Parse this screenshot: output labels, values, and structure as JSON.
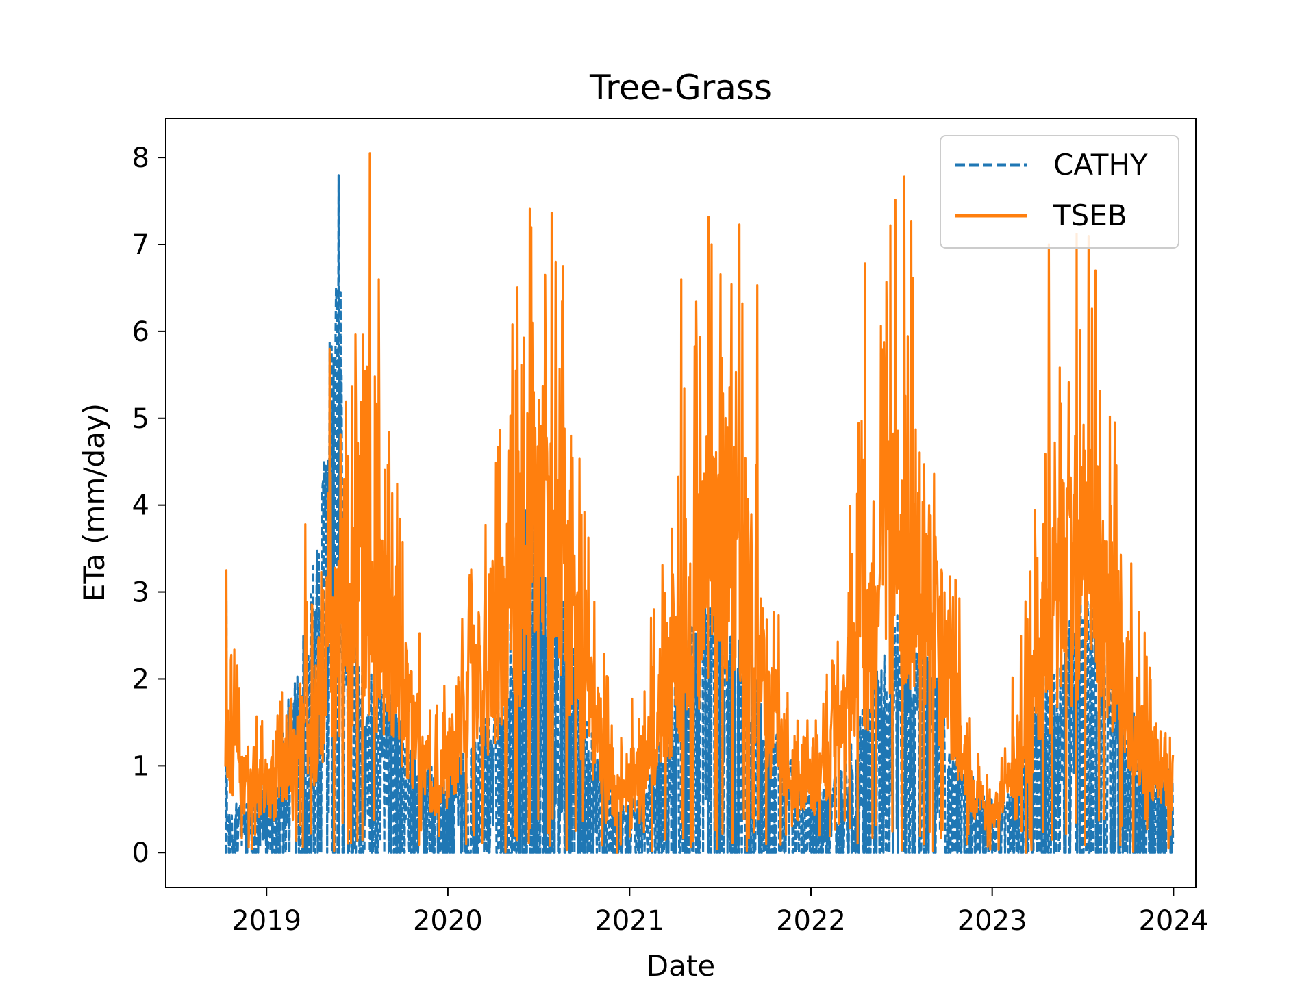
{
  "chart_data": {
    "type": "line",
    "title": "Tree-Grass",
    "xlabel": "Date",
    "ylabel": "ETa (mm/day)",
    "xlim": [
      "2018-06-12",
      "2024-02-15"
    ],
    "ylim": [
      -0.4,
      8.45
    ],
    "x_ticks": [
      "2019",
      "2020",
      "2021",
      "2022",
      "2023",
      "2024"
    ],
    "y_ticks": [
      0,
      1,
      2,
      3,
      4,
      5,
      6,
      7,
      8
    ],
    "grid": false,
    "legend": {
      "placement": "top-right"
    },
    "date_range": [
      "2018-10-10",
      "2023-12-31"
    ],
    "series": [
      {
        "name": "CATHY",
        "style": "dashed",
        "color": "#1f77b4",
        "anchors": [
          [
            "2018-10-10",
            0.3
          ],
          [
            "2018-11-15",
            0.5
          ],
          [
            "2018-12-20",
            0.6
          ],
          [
            "2019-02-01",
            1.0
          ],
          [
            "2019-03-15",
            2.0
          ],
          [
            "2019-04-20",
            2.8
          ],
          [
            "2019-05-10",
            5.0
          ],
          [
            "2019-05-25",
            6.3
          ],
          [
            "2019-06-10",
            2.5
          ],
          [
            "2019-07-15",
            1.6
          ],
          [
            "2019-09-01",
            1.4
          ],
          [
            "2019-10-15",
            1.0
          ],
          [
            "2019-12-15",
            0.7
          ],
          [
            "2020-02-15",
            0.9
          ],
          [
            "2020-04-01",
            1.3
          ],
          [
            "2020-05-15",
            2.2
          ],
          [
            "2020-06-15",
            3.6
          ],
          [
            "2020-07-15",
            2.7
          ],
          [
            "2020-09-01",
            2.0
          ],
          [
            "2020-10-15",
            1.1
          ],
          [
            "2020-12-15",
            0.4
          ],
          [
            "2021-02-15",
            0.7
          ],
          [
            "2021-04-15",
            1.8
          ],
          [
            "2021-06-15",
            2.6
          ],
          [
            "2021-08-01",
            2.3
          ],
          [
            "2021-09-15",
            1.6
          ],
          [
            "2021-11-15",
            0.9
          ],
          [
            "2022-01-15",
            0.5
          ],
          [
            "2022-03-15",
            0.9
          ],
          [
            "2022-05-15",
            1.6
          ],
          [
            "2022-07-01",
            2.1
          ],
          [
            "2022-09-01",
            1.7
          ],
          [
            "2022-10-15",
            1.0
          ],
          [
            "2022-12-15",
            0.5
          ],
          [
            "2023-02-15",
            0.6
          ],
          [
            "2023-04-01",
            1.4
          ],
          [
            "2023-05-15",
            1.8
          ],
          [
            "2023-07-01",
            2.4
          ],
          [
            "2023-08-15",
            2.0
          ],
          [
            "2023-10-01",
            1.4
          ],
          [
            "2023-11-15",
            0.9
          ],
          [
            "2023-12-31",
            0.7
          ]
        ],
        "peaks": [
          [
            "2018-10-12",
            2.9
          ],
          [
            "2019-04-05",
            3.3
          ],
          [
            "2019-05-22",
            6.3
          ],
          [
            "2019-05-30",
            6.45
          ],
          [
            "2020-06-28",
            4.4
          ],
          [
            "2021-07-15",
            3.0
          ],
          [
            "2022-06-10",
            2.6
          ],
          [
            "2023-06-20",
            2.6
          ],
          [
            "2023-09-01",
            2.3
          ]
        ]
      },
      {
        "name": "TSEB",
        "style": "solid",
        "color": "#ff7f0e",
        "anchors": [
          [
            "2018-10-10",
            1.5
          ],
          [
            "2018-11-20",
            0.9
          ],
          [
            "2019-01-15",
            0.8
          ],
          [
            "2019-03-01",
            1.3
          ],
          [
            "2019-04-15",
            1.8
          ],
          [
            "2019-06-01",
            2.8
          ],
          [
            "2019-07-15",
            3.4
          ],
          [
            "2019-09-01",
            2.8
          ],
          [
            "2019-10-15",
            1.7
          ],
          [
            "2019-12-01",
            0.9
          ],
          [
            "2020-01-15",
            1.2
          ],
          [
            "2020-03-01",
            2.2
          ],
          [
            "2020-04-15",
            2.8
          ],
          [
            "2020-06-01",
            3.9
          ],
          [
            "2020-07-15",
            4.3
          ],
          [
            "2020-09-01",
            3.1
          ],
          [
            "2020-10-15",
            1.8
          ],
          [
            "2020-12-01",
            0.8
          ],
          [
            "2021-01-15",
            1.0
          ],
          [
            "2021-03-01",
            1.8
          ],
          [
            "2021-04-15",
            2.9
          ],
          [
            "2021-06-01",
            3.8
          ],
          [
            "2021-07-15",
            4.3
          ],
          [
            "2021-09-01",
            3.1
          ],
          [
            "2021-10-15",
            1.8
          ],
          [
            "2021-12-01",
            0.8
          ],
          [
            "2022-01-15",
            0.9
          ],
          [
            "2022-03-01",
            1.7
          ],
          [
            "2022-04-15",
            2.8
          ],
          [
            "2022-06-01",
            3.9
          ],
          [
            "2022-07-15",
            4.2
          ],
          [
            "2022-09-01",
            3.1
          ],
          [
            "2022-10-15",
            1.9
          ],
          [
            "2022-12-01",
            0.6
          ],
          [
            "2023-01-15",
            0.6
          ],
          [
            "2023-03-01",
            1.4
          ],
          [
            "2023-04-15",
            2.6
          ],
          [
            "2023-06-01",
            3.6
          ],
          [
            "2023-07-15",
            3.9
          ],
          [
            "2023-09-01",
            2.8
          ],
          [
            "2023-10-15",
            1.6
          ],
          [
            "2023-12-01",
            1.1
          ],
          [
            "2023-12-31",
            1.05
          ]
        ],
        "peaks": [
          [
            "2018-10-12",
            3.25
          ],
          [
            "2019-03-20",
            3.78
          ],
          [
            "2019-05-08",
            5.8
          ],
          [
            "2019-07-28",
            8.05
          ],
          [
            "2019-08-15",
            6.6
          ],
          [
            "2020-05-10",
            6.08
          ],
          [
            "2020-07-15",
            6.65
          ],
          [
            "2020-08-05",
            6.8
          ],
          [
            "2020-08-20",
            6.75
          ],
          [
            "2021-04-15",
            6.6
          ],
          [
            "2021-06-15",
            7.0
          ],
          [
            "2021-08-10",
            7.23
          ],
          [
            "2021-09-15",
            6.53
          ],
          [
            "2022-04-20",
            6.78
          ],
          [
            "2022-06-10",
            7.22
          ],
          [
            "2022-07-08",
            7.78
          ],
          [
            "2023-04-25",
            7.0
          ],
          [
            "2023-06-20",
            7.12
          ],
          [
            "2023-07-28",
            6.7
          ]
        ]
      }
    ]
  }
}
